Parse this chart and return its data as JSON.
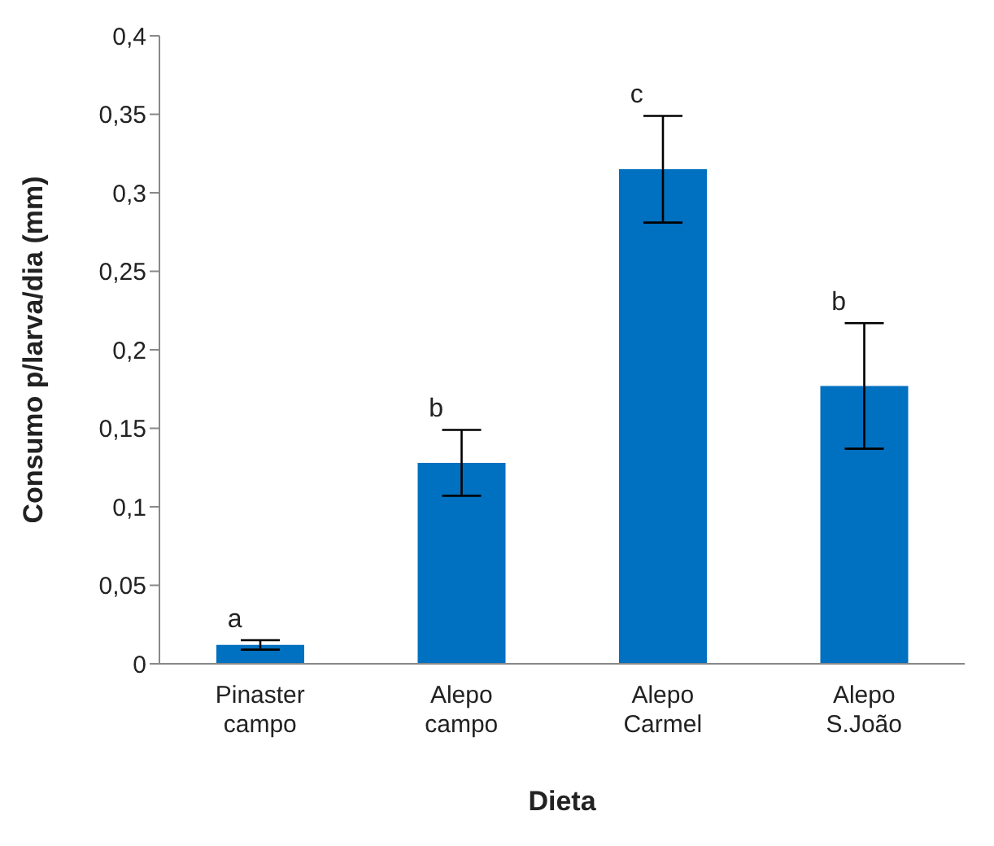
{
  "chart_data": {
    "type": "bar",
    "xlabel": "Dieta",
    "ylabel": "Consumo p/larva/dia (mm)",
    "categories": [
      "Pinaster campo",
      "Alepo campo",
      "Alepo Carmel",
      "Alepo S.João"
    ],
    "values": [
      0.012,
      0.128,
      0.315,
      0.177
    ],
    "errors": [
      0.003,
      0.021,
      0.034,
      0.04
    ],
    "color": "#0070c0",
    "ylim": [
      0,
      0.4
    ],
    "yticks": [
      0,
      {
        "value": 0.05,
        "label": "0,05"
      },
      {
        "value": 0.1,
        "label": "0,1"
      },
      {
        "value": 0.15,
        "label": "0,15"
      },
      {
        "value": 0.2,
        "label": "0,2"
      },
      {
        "value": 0.25,
        "label": "0,25"
      },
      {
        "value": 0.3,
        "label": "0,3"
      },
      {
        "value": 0.35,
        "label": "0,35"
      },
      {
        "value": 0.4,
        "label": "0,4"
      }
    ],
    "grid": false,
    "legend": false,
    "annotations": [
      {
        "text": "a",
        "x": "Pinaster campo",
        "y": 0.015
      },
      {
        "text": "b",
        "x": "Alepo campo",
        "y": 0.149
      },
      {
        "text": "c",
        "x": "Alepo Carmel",
        "y": 0.349
      },
      {
        "text": "b",
        "x": "Alepo S.João",
        "y": 0.217
      }
    ]
  }
}
